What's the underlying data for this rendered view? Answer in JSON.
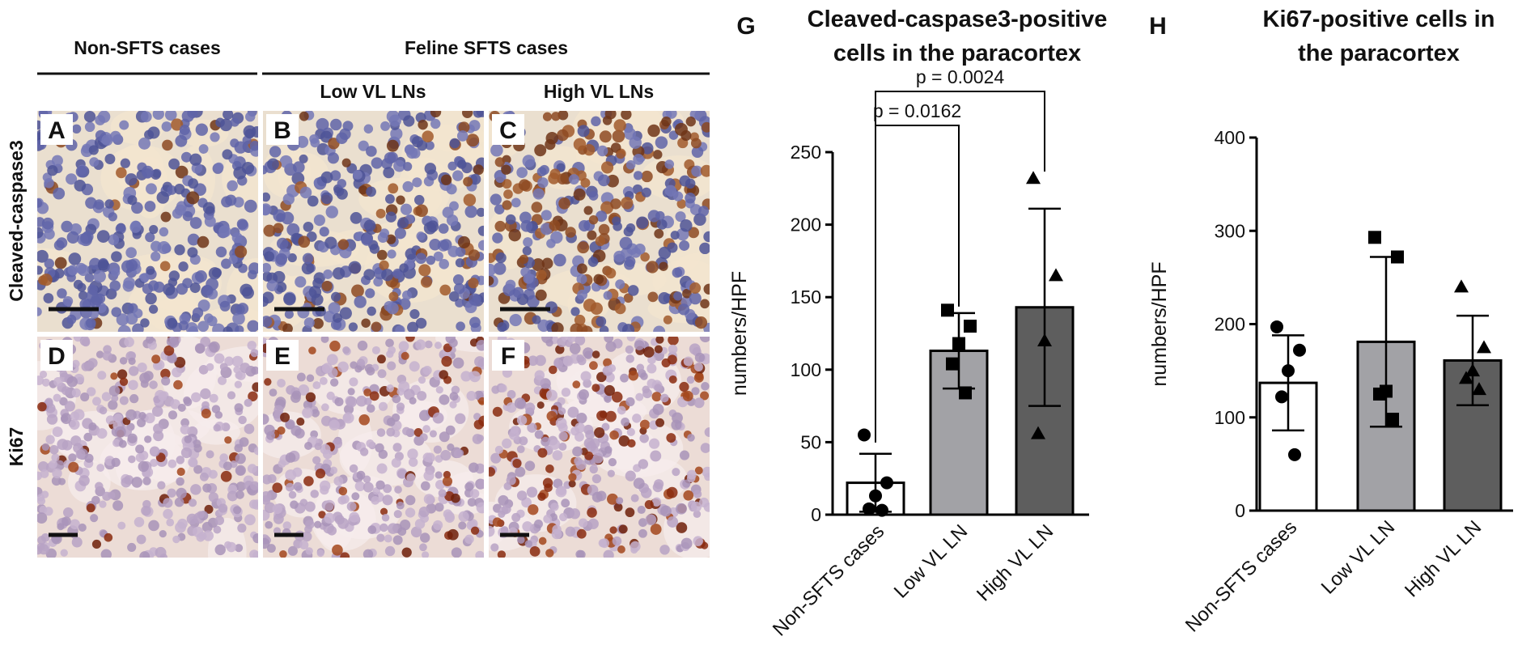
{
  "column_headers": {
    "non_sfts": "Non-SFTS cases",
    "sfts": "Feline SFTS cases",
    "low": "Low VL LNs",
    "high": "High VL LNs"
  },
  "row_labels": [
    "Cleaved-caspase3",
    "Ki67"
  ],
  "panels": [
    "A",
    "B",
    "C",
    "D",
    "E",
    "F"
  ],
  "chart_data": [
    {
      "type": "bar",
      "panel": "G",
      "title": [
        "Cleaved-caspase3-positive",
        "cells in the paracortex"
      ],
      "ylabel": "numbers/HPF",
      "categories": [
        "Non-SFTS cases",
        "Low VL LN",
        "High VL LN"
      ],
      "values": [
        22,
        113,
        143
      ],
      "errors": [
        20,
        26,
        68
      ],
      "colors": [
        "#ffffff",
        "#a2a2a6",
        "#5e5e5e"
      ],
      "markers": [
        "circle",
        "square",
        "triangle"
      ],
      "points": [
        [
          55,
          22,
          13,
          4,
          3
        ],
        [
          141,
          130,
          118,
          104,
          84
        ],
        [
          232,
          165,
          120,
          56
        ]
      ],
      "ylim": [
        0,
        250
      ],
      "yticks": [
        0,
        50,
        100,
        150,
        200,
        250
      ],
      "annotations": [
        "p = 0.0162",
        "p = 0.0024"
      ]
    },
    {
      "type": "bar",
      "panel": "H",
      "title": [
        "Ki67-positive cells in",
        "the paracortex"
      ],
      "ylabel": "numbers/HPF",
      "categories": [
        "Non-SFTS cases",
        "Low VL LN",
        "High VL LN"
      ],
      "values": [
        137,
        181,
        161
      ],
      "errors": [
        51,
        91,
        48
      ],
      "colors": [
        "#ffffff",
        "#a2a2a6",
        "#5e5e5e"
      ],
      "markers": [
        "circle",
        "square",
        "triangle"
      ],
      "points": [
        [
          197,
          172,
          150,
          122,
          60
        ],
        [
          293,
          272,
          128,
          125,
          98
        ],
        [
          240,
          175,
          150,
          142,
          130
        ]
      ],
      "ylim": [
        0,
        400
      ],
      "yticks": [
        0,
        100,
        200,
        300,
        400
      ]
    }
  ]
}
